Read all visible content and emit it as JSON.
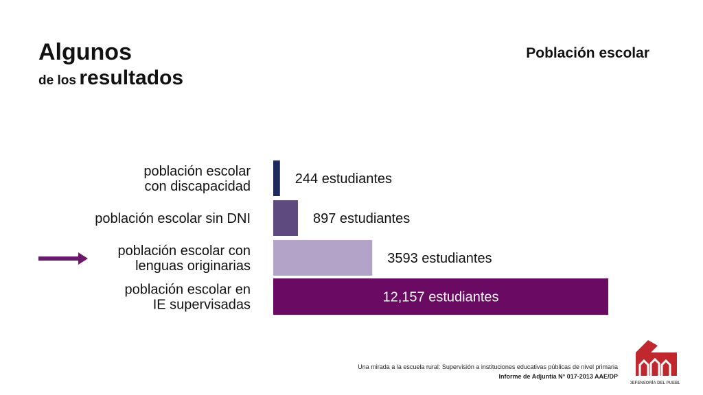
{
  "header": {
    "title_line1": "Algunos",
    "title_line2_small": "de los",
    "title_line2_big": "resultados",
    "section_title": "Población escolar"
  },
  "chart_data": {
    "type": "bar",
    "orientation": "horizontal",
    "title": "Población escolar",
    "categories": [
      "población escolar con discapacidad",
      "población escolar sin DNI",
      "población escolar con lenguas originarias",
      "población escolar en IE supervisadas"
    ],
    "category_lines": [
      [
        "población escolar",
        "con discapacidad"
      ],
      [
        "población escolar sin DNI"
      ],
      [
        "población escolar con",
        "lenguas originarias"
      ],
      [
        "población escolar en",
        "IE supervisadas"
      ]
    ],
    "values": [
      244,
      897,
      3593,
      12157
    ],
    "value_labels": [
      "244 estudiantes",
      "897 estudiantes",
      "3593 estudiantes",
      "12,157 estudiantes"
    ],
    "colors": [
      "#1f2a5c",
      "#5e4a7e",
      "#b3a3c8",
      "#6b0a63"
    ],
    "highlighted_index": 2,
    "arrow_color": "#6b1a6b"
  },
  "footer": {
    "line1": "Una mirada a la escuela rural: Supervisión a instituciones educativas públicas de nivel primaria",
    "line2": "Informe de Adjuntía N° 017-2013 AAE/DP"
  },
  "logo": {
    "text": "DEFENSORÍA DEL PUEBLO",
    "colors": [
      "#c0282d",
      "#ffffff",
      "#555555"
    ]
  }
}
